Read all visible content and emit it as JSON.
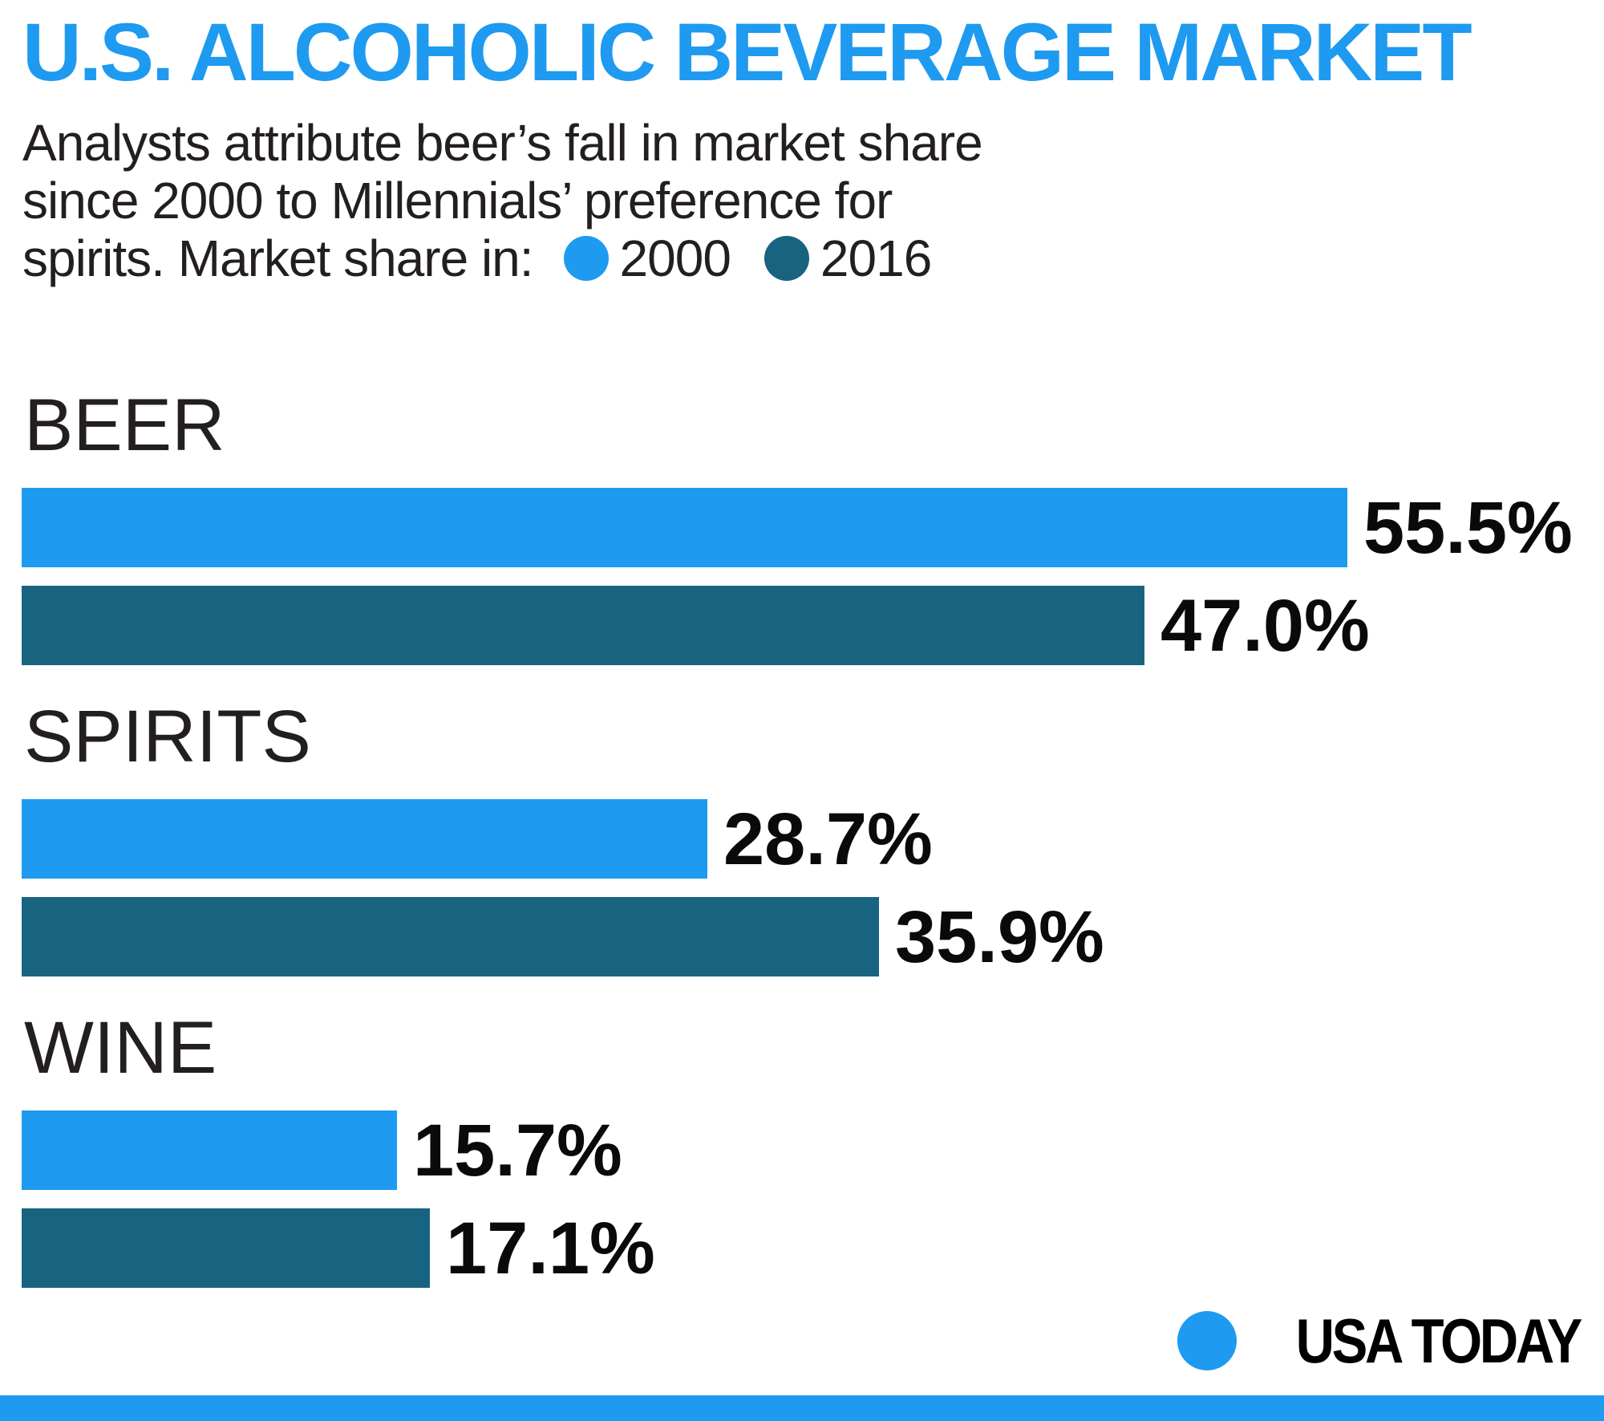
{
  "title": "U.S. ALCOHOLIC BEVERAGE MARKET",
  "subtitle": {
    "line1": "Analysts attribute beer’s fall in market share",
    "line2": "since 2000 to Millennials’ preference for",
    "line3": "spirits. Market share in:"
  },
  "legend": {
    "items": [
      {
        "label": "2000",
        "color": "#1E9AF0"
      },
      {
        "label": "2016",
        "color": "#186380"
      }
    ]
  },
  "chart_data": {
    "type": "bar",
    "orientation": "horizontal",
    "categories": [
      "BEER",
      "SPIRITS",
      "WINE"
    ],
    "series": [
      {
        "name": "2000",
        "color": "#1E9AF0",
        "values": [
          55.5,
          28.7,
          15.7
        ]
      },
      {
        "name": "2016",
        "color": "#186380",
        "values": [
          47.0,
          35.9,
          17.1
        ]
      }
    ],
    "value_labels": [
      [
        "55.5%",
        "47.0%"
      ],
      [
        "28.7%",
        "35.9%"
      ],
      [
        "15.7%",
        "17.1%"
      ]
    ],
    "xlim": [
      0,
      55.5
    ],
    "grid": false,
    "legend_position": "inline-with-subtitle"
  },
  "branding": {
    "source": "USA TODAY"
  },
  "colors": {
    "accent": "#1E9AF0",
    "dark": "#186380",
    "text": "#231F20"
  }
}
